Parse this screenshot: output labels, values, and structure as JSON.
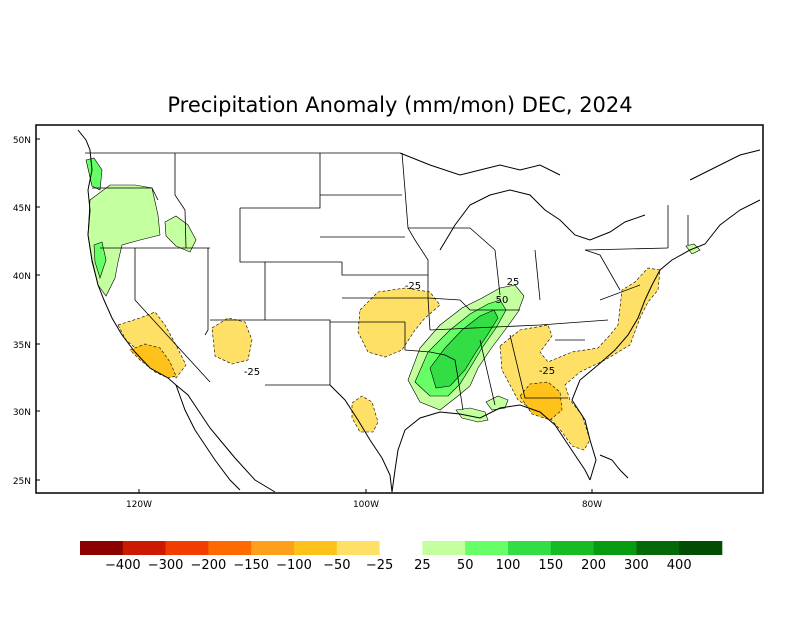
{
  "title": "Precipitation Anomaly (mm/mon) DEC, 2024",
  "lat_labels": [
    "50N",
    "45N",
    "40N",
    "35N",
    "30N",
    "25N"
  ],
  "lon_labels": [
    "120W",
    "100W",
    "80W"
  ],
  "contour_labels": [
    "-25",
    "-25",
    "-25",
    "25",
    "50"
  ],
  "colorbar": {
    "colors": [
      "#8b0000",
      "#cc1a00",
      "#f23c00",
      "#ff6a00",
      "#ff9f1a",
      "#ffc21a",
      "#ffe066",
      "#ffffff",
      "#c4ffa0",
      "#66ff66",
      "#33dd44",
      "#18bb22",
      "#089a10",
      "#046a08",
      "#024d04"
    ],
    "labels": [
      "-400",
      "-300",
      "-200",
      "-150",
      "-100",
      "-50",
      "-25",
      "25",
      "50",
      "100",
      "150",
      "200",
      "300",
      "400"
    ]
  },
  "palette": {
    "neg25": "#ffe066",
    "neg50": "#ffc21a",
    "pos25": "#c4ffa0",
    "pos50": "#66ff66",
    "pos100": "#33dd44"
  }
}
